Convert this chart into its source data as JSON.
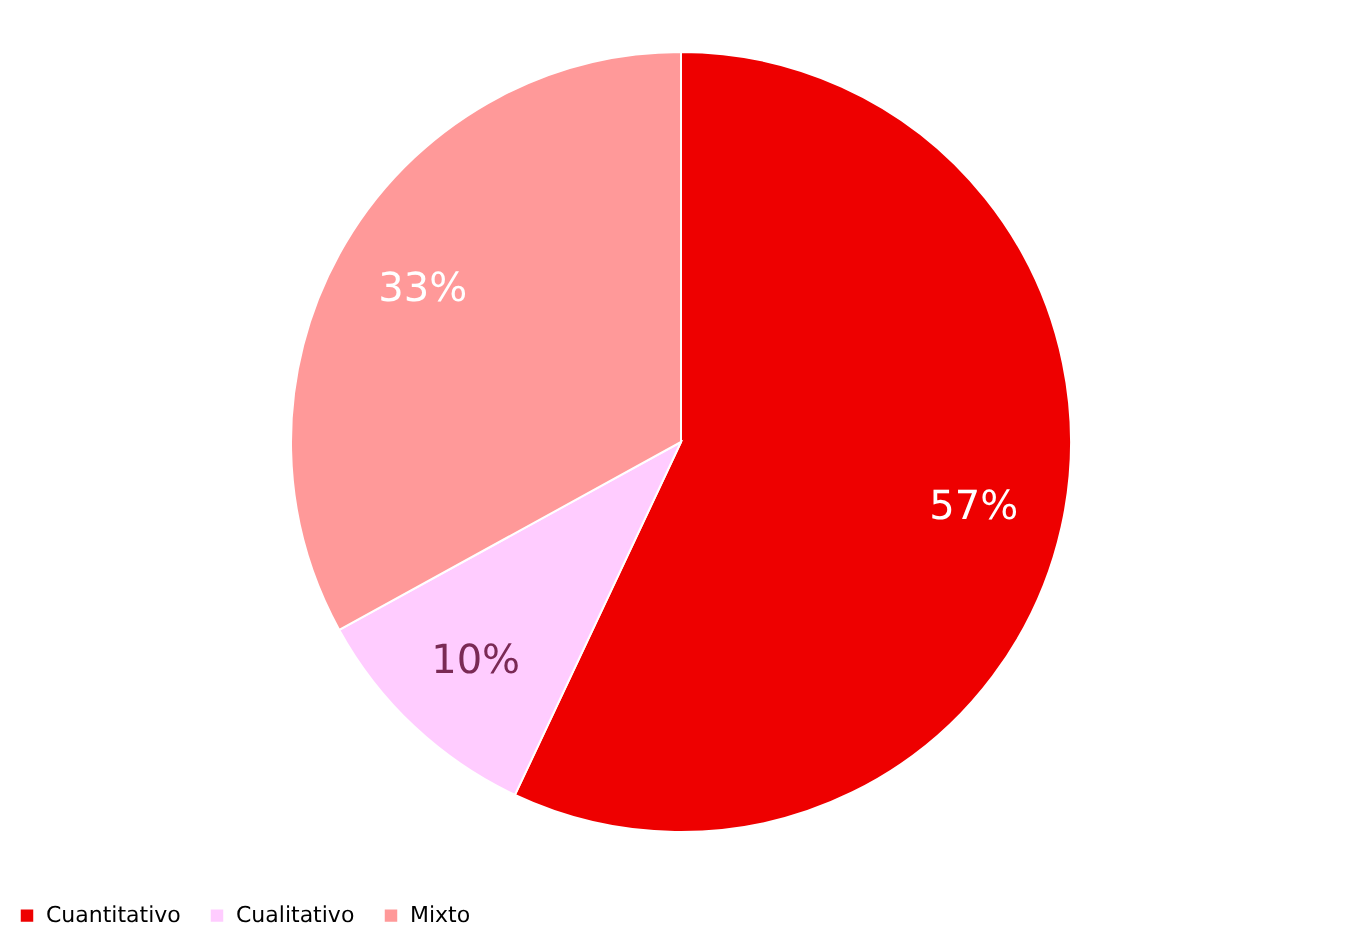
{
  "chart_data": {
    "type": "pie",
    "categories": [
      "Cuantitativo",
      "Cualitativo",
      "Mixto"
    ],
    "values": [
      57,
      10,
      33
    ],
    "colors": [
      "#ee0000",
      "#ffccff",
      "#ff9999"
    ],
    "value_labels": [
      "57%",
      "10%",
      "33%"
    ],
    "legend": "bottom"
  }
}
